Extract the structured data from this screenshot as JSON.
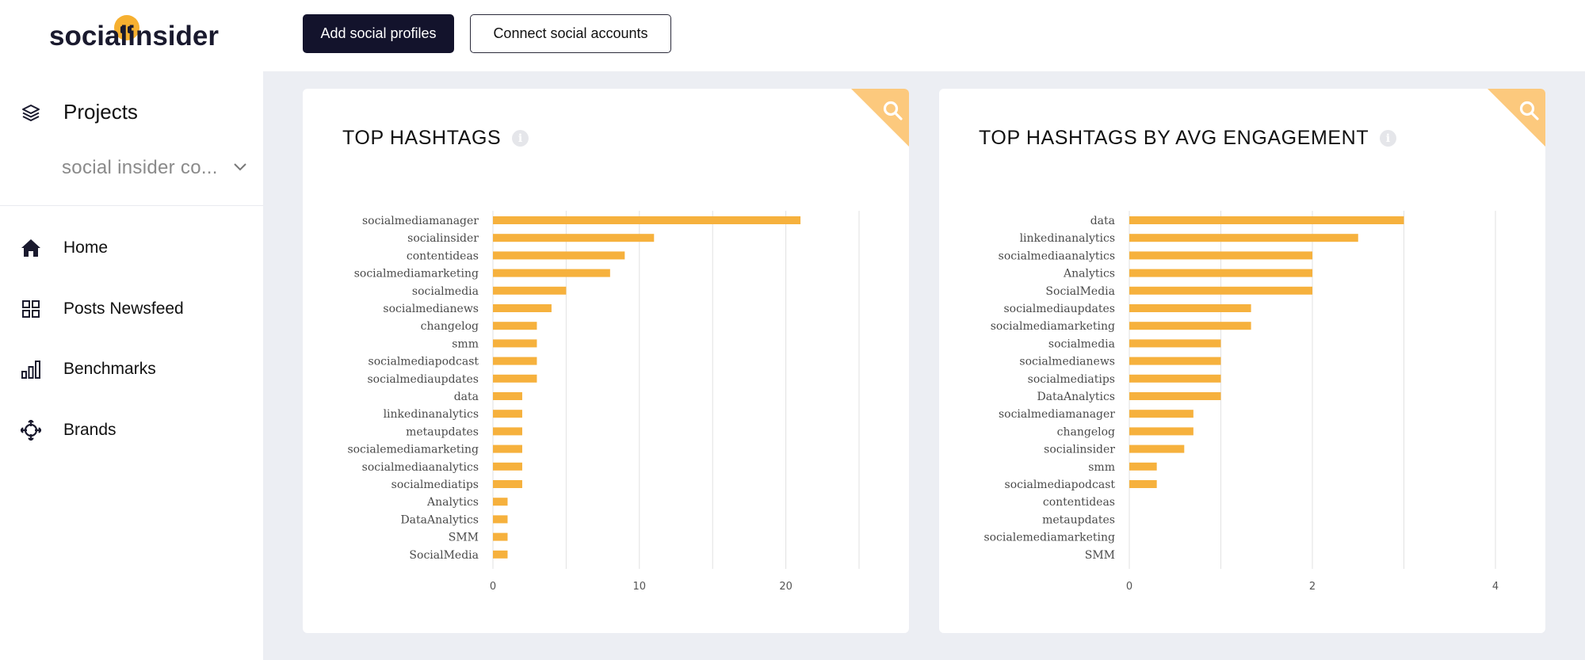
{
  "sidebar": {
    "logo": "socialinsider",
    "projects_label": "Projects",
    "project_select": "social insider co...",
    "nav": [
      {
        "label": "Home",
        "icon": "home-icon"
      },
      {
        "label": "Posts Newsfeed",
        "icon": "grid-icon"
      },
      {
        "label": "Benchmarks",
        "icon": "bar-chart-icon"
      },
      {
        "label": "Brands",
        "icon": "crosshair-icon"
      }
    ]
  },
  "toolbar": {
    "add_profiles_label": "Add social profiles",
    "connect_accounts_label": "Connect social accounts"
  },
  "colors": {
    "bar": "#f6b13d",
    "accent": "#fcc97d",
    "primary": "#13132c"
  },
  "chart_data": [
    {
      "type": "bar",
      "orientation": "horizontal",
      "title": "TOP HASHTAGS",
      "categories": [
        "socialmediamanager",
        "socialinsider",
        "contentideas",
        "socialmediamarketing",
        "socialmedia",
        "socialmedianews",
        "changelog",
        "smm",
        "socialmediapodcast",
        "socialmediaupdates",
        "data",
        "linkedinanalytics",
        "metaupdates",
        "socialemediamarketing",
        "socialmediaanalytics",
        "socialmediatips",
        "Analytics",
        "DataAnalytics",
        "SMM",
        "SocialMedia"
      ],
      "values": [
        21,
        11,
        9,
        8,
        5,
        4,
        3,
        3,
        3,
        3,
        2,
        2,
        2,
        2,
        2,
        2,
        1,
        1,
        1,
        1
      ],
      "xlim": [
        0,
        25
      ],
      "xticks": [
        0,
        10,
        20
      ],
      "grid": [
        0,
        5,
        10,
        15,
        20,
        25
      ]
    },
    {
      "type": "bar",
      "orientation": "horizontal",
      "title": "TOP HASHTAGS BY AVG ENGAGEMENT",
      "categories": [
        "data",
        "linkedinanalytics",
        "socialmediaanalytics",
        "Analytics",
        "SocialMedia",
        "socialmediaupdates",
        "socialmediamarketing",
        "socialmedia",
        "socialmedianews",
        "socialmediatips",
        "DataAnalytics",
        "socialmediamanager",
        "changelog",
        "socialinsider",
        "smm",
        "socialmediapodcast",
        "contentideas",
        "metaupdates",
        "socialemediamarketing",
        "SMM"
      ],
      "values": [
        3,
        2.5,
        2,
        2,
        2,
        1.33,
        1.33,
        1,
        1,
        1,
        1,
        0.7,
        0.7,
        0.6,
        0.3,
        0.3,
        0,
        0,
        0,
        0
      ],
      "xlim": [
        0,
        4
      ],
      "xticks": [
        0,
        2,
        4
      ],
      "grid": [
        0,
        1,
        2,
        3,
        4
      ]
    }
  ]
}
